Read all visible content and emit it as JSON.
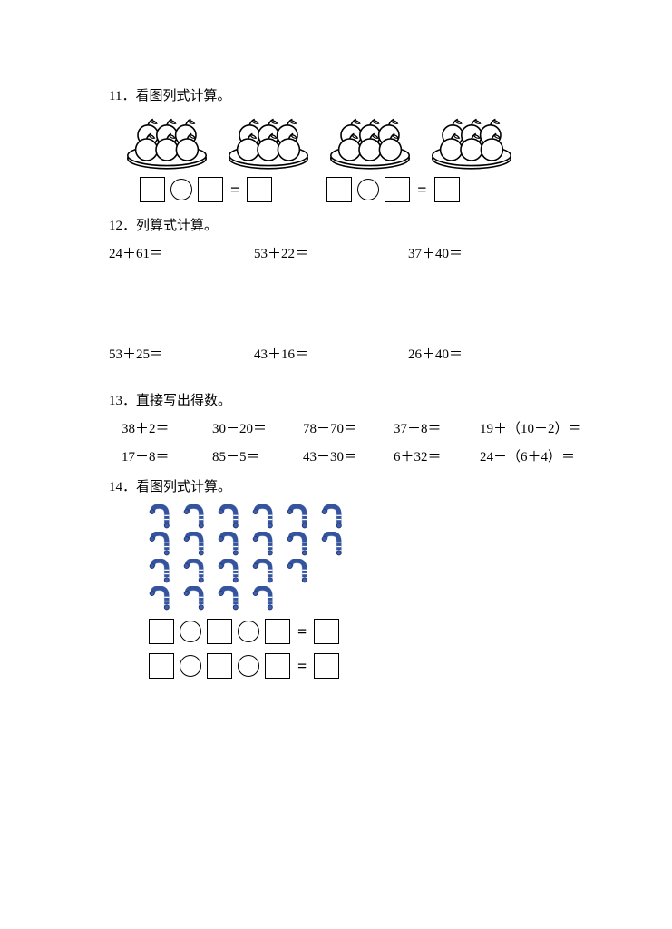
{
  "colors": {
    "text": "#000000",
    "background": "#ffffff",
    "worm_body": "#3b5fb0",
    "worm_stroke": "#24336b",
    "apple_stroke": "#000000",
    "apple_fill": "#ffffff"
  },
  "q11": {
    "title": "11．看图列式计算。",
    "plates_count": 4,
    "apples_per_plate": 6,
    "equation_template": {
      "count": 2,
      "parts": [
        "box",
        "circle",
        "box",
        "equals",
        "box"
      ]
    }
  },
  "q12": {
    "title": "12．列算式计算。",
    "problems": [
      "24＋61＝",
      "53＋22＝",
      "37＋40＝",
      "53＋25＝",
      "43＋16＝",
      "26＋40＝"
    ],
    "columns": 3
  },
  "q13": {
    "title": "13．直接写出得数。",
    "problems": [
      "38＋2＝",
      "30－20＝",
      "78－70＝",
      "37－8＝",
      "19＋（10－2）＝",
      "17－8＝",
      "85－5＝",
      "43－30＝",
      "6＋32＝",
      "24－（6＋4）＝"
    ],
    "columns": 5
  },
  "q14": {
    "title": "14．看图列式计算。",
    "worm_rows": [
      6,
      6,
      5,
      4
    ],
    "equation_template": {
      "count": 2,
      "parts": [
        "box",
        "circle",
        "box",
        "circle",
        "box",
        "equals",
        "box"
      ]
    }
  }
}
